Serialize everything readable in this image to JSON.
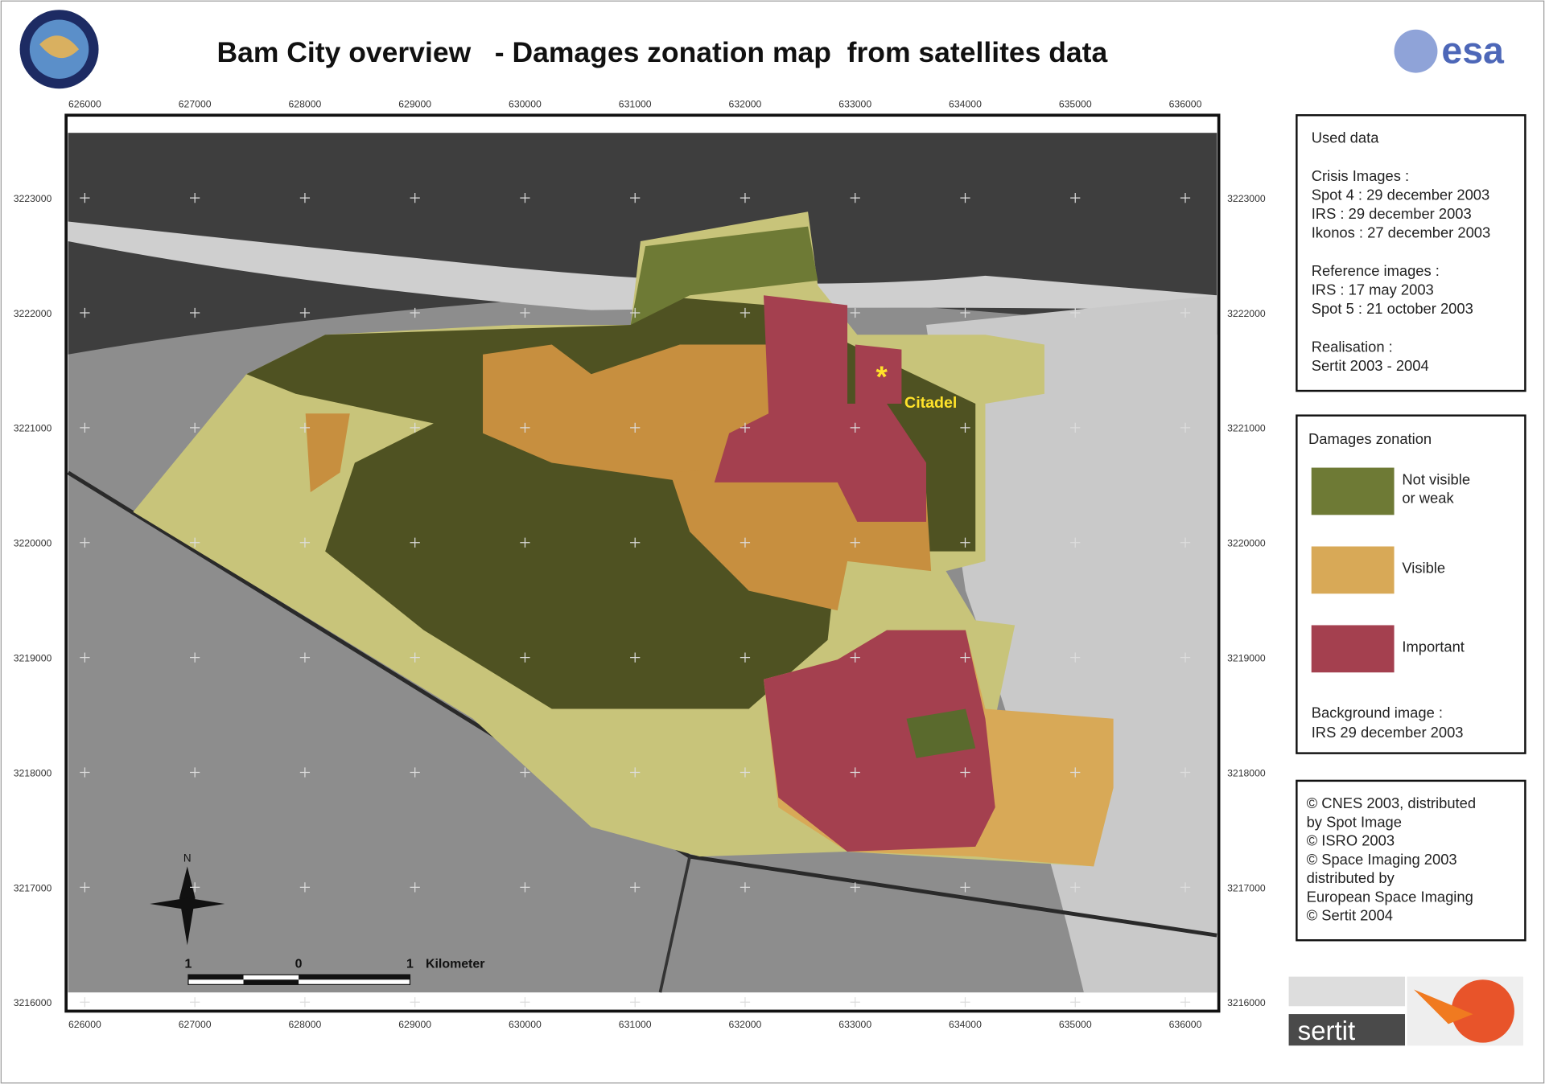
{
  "header": {
    "title": "Bam City overview   - Damages zonation map  from satellites data",
    "logo_right": "esa"
  },
  "map": {
    "x_ticks": [
      626000,
      627000,
      628000,
      629000,
      630000,
      631000,
      632000,
      633000,
      634000,
      635000,
      636000
    ],
    "y_ticks": [
      3223000,
      3222000,
      3221000,
      3220000,
      3219000,
      3218000,
      3217000,
      3216000
    ],
    "place_label": "Citadel",
    "north": "N",
    "scale_labels": [
      "1",
      "0",
      "1",
      "Kilometer"
    ]
  },
  "used_data": {
    "lines": [
      "Used data",
      "",
      "Crisis  Images :",
      "Spot 4  : 29 december 2003",
      "IRS : 29 december 2003",
      "Ikonos : 27 december 2003",
      "",
      "Reference images :",
      "IRS : 17 may 2003",
      "Spot 5 : 21 october 2003",
      "",
      "Realisation :",
      "Sertit 2003 - 2004"
    ]
  },
  "legend": {
    "title": "Damages zonation",
    "items": [
      {
        "lines": [
          "Not visible",
          "or weak"
        ],
        "color": "#6e7a35"
      },
      {
        "lines": [
          "Visible"
        ],
        "color": "#d8a957"
      },
      {
        "lines": [
          "Important"
        ],
        "color": "#a4404f"
      }
    ],
    "background": [
      "Background  image :",
      "IRS 29 december 2003"
    ]
  },
  "credits": {
    "lines": [
      "© CNES 2003, distributed",
      "by Spot Image",
      "© ISRO 2003",
      "© Space Imaging 2003",
      "distributed by",
      "European Space Imaging",
      "© Sertit 2004"
    ]
  },
  "footer": {
    "logo": "sertit"
  }
}
